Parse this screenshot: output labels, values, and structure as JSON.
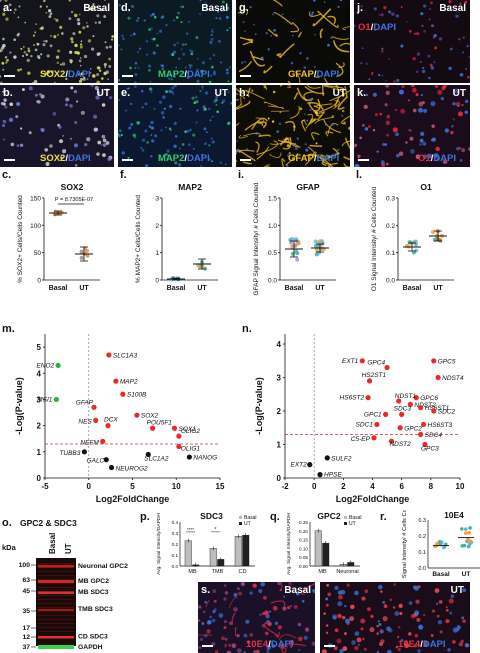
{
  "panels": {
    "a": {
      "letter": "a.",
      "condition": "Basal",
      "stain1": "SOX2",
      "stain2": "DAPI"
    },
    "b": {
      "letter": "b.",
      "condition": "UT",
      "stain1": "SOX2",
      "stain2": "DAPI"
    },
    "d": {
      "letter": "d.",
      "condition": "Basal",
      "stain1": "MAP2",
      "stain2": "DAPI"
    },
    "e": {
      "letter": "e.",
      "condition": "UT",
      "stain1": "MAP2",
      "stain2": "DAPI"
    },
    "g": {
      "letter": "g.",
      "condition": "Basal",
      "stain1": "GFAP",
      "stain2": "DAPI"
    },
    "h": {
      "letter": "h.",
      "condition": "UT",
      "stain1": "GFAP",
      "stain2": "DAPI"
    },
    "j": {
      "letter": "j.",
      "condition": "Basal",
      "stain1": "O1",
      "stain2": "DAPI"
    },
    "k": {
      "letter": "k.",
      "condition": "UT",
      "stain1": "O1",
      "stain2": "DAPI"
    },
    "s": {
      "letter": "s.",
      "condition": "Basal",
      "stain1": "10E4",
      "stain2": "DAPI"
    },
    "s2": {
      "letter": "",
      "condition": "UT",
      "stain1": "10E4",
      "stain2": "DAPI"
    }
  },
  "colors": {
    "sox2": "#e8e048",
    "map2": "#2ecf70",
    "gfap": "#f0c020",
    "o1": "#e8283c",
    "dapi": "#3d74e0",
    "10e4": "#e83040"
  },
  "scatter_plots": {
    "c": {
      "letter": "c.",
      "title": "SOX2",
      "ylabel": "% SOX2+ Cells/Cells Counted",
      "pvalue": "P = 8.7305E-07",
      "yticks": [
        "0",
        "50",
        "100",
        "150"
      ],
      "xticks": [
        "Basal",
        "UT"
      ]
    },
    "f": {
      "letter": "f.",
      "title": "MAP2",
      "ylabel": "% MAP2+ Cells/Cells Counted",
      "yticks": [
        "0",
        "1",
        "2",
        "3"
      ],
      "xticks": [
        "Basal",
        "UT"
      ]
    },
    "i": {
      "letter": "i.",
      "title": "GFAP",
      "ylabel": "GFAP Signal Intensity/ # Cells Counted",
      "yticks": [
        "0.0",
        "0.5",
        "1.0",
        "1.5"
      ],
      "xticks": [
        "Basal",
        "UT"
      ]
    },
    "l": {
      "letter": "l.",
      "title": "O1",
      "ylabel": "O1 Signal Intensity/ # Cells Counted",
      "yticks": [
        "0.0",
        "0.1",
        "0.2",
        "0.3"
      ],
      "xticks": [
        "Basal",
        "UT"
      ]
    },
    "r": {
      "letter": "r.",
      "title": "10E4",
      "ylabel": "10E4 Signal Intensity/ # Cells Counted",
      "yticks": [
        "0.0",
        "0.1",
        "0.2",
        "0.3"
      ],
      "xticks": [
        "Basal",
        "UT"
      ]
    }
  },
  "volcano_m": {
    "letter": "m.",
    "xlabel": "Log2FoldChange",
    "ylabel": "-Log(P-value)",
    "xticks": [
      "-5",
      "0",
      "5",
      "10",
      "15"
    ],
    "yticks": [
      "0",
      "1",
      "2",
      "3",
      "4",
      "5"
    ],
    "labels": [
      "ENO2",
      "MSI1",
      "SLC1A3",
      "MAP2",
      "S100B",
      "GFAP",
      "SOX2",
      "NES",
      "DCX",
      "POU5F1",
      "SOX1",
      "OLIG2",
      "NEFM",
      "OLIG1",
      "TUBB3",
      "GALC",
      "SLC1A2",
      "NANOG",
      "NEUROG2"
    ]
  },
  "volcano_n": {
    "letter": "n.",
    "xlabel": "Log2FoldChange",
    "ylabel": "-Log(P-value)",
    "xticks": [
      "-2",
      "0",
      "2",
      "4",
      "6",
      "8",
      "10"
    ],
    "yticks": [
      "0",
      "1",
      "2",
      "3",
      "4"
    ],
    "labels": [
      "EXT1",
      "GPC4",
      "GPC5",
      "HS2ST1",
      "NDST4",
      "GPC6",
      "HS6ST2",
      "NDST1",
      "NDST2",
      "HS6ST1",
      "SDC2",
      "GPC1",
      "SDC3",
      "HS6ST3",
      "SDC1",
      "GPC2",
      "SDC4",
      "C5-EP",
      "NDST2",
      "GPC3",
      "SULF2",
      "EXT2",
      "HPSE"
    ]
  },
  "western": {
    "letter": "o.",
    "title": "GPC2 & SDC3",
    "kda": "kDa",
    "lanes": [
      "Basal",
      "UT"
    ],
    "markers": [
      "100",
      "63",
      "45",
      "35",
      "17",
      "12",
      "37"
    ],
    "bands": [
      "Neuronal GPC2",
      "MB GPC2",
      "MB SDC3",
      "TMB SDC3",
      "CD SDC3",
      "GAPDH"
    ]
  },
  "chart_data": [
    {
      "type": "bar",
      "panel": "p",
      "title": "SDC3",
      "ylabel": "Avg. Signal Intensity/GAPDH",
      "categories": [
        "MB",
        "TMB",
        "CD"
      ],
      "ylim": [
        0,
        0.4
      ],
      "series": [
        {
          "name": "Basal",
          "values": [
            0.23,
            0.16,
            0.27
          ]
        },
        {
          "name": "UT",
          "values": [
            0.01,
            0.06,
            0.28
          ]
        }
      ],
      "yticks": [
        "0.0",
        "0.1",
        "0.2",
        "0.3",
        "0.4"
      ]
    },
    {
      "type": "bar",
      "panel": "q",
      "title": "GPC2",
      "ylabel": "Avg. Signal Intensity/GAPDH",
      "categories": [
        "MB",
        "Neuronal"
      ],
      "ylim": [
        0,
        0.25
      ],
      "series": [
        {
          "name": "Basal",
          "values": [
            0.2,
            0.01
          ]
        },
        {
          "name": "UT",
          "values": [
            0.13,
            0.02
          ]
        }
      ],
      "yticks": [
        "0.00",
        "0.05",
        "0.10",
        "0.15",
        "0.20",
        "0.25"
      ]
    }
  ]
}
